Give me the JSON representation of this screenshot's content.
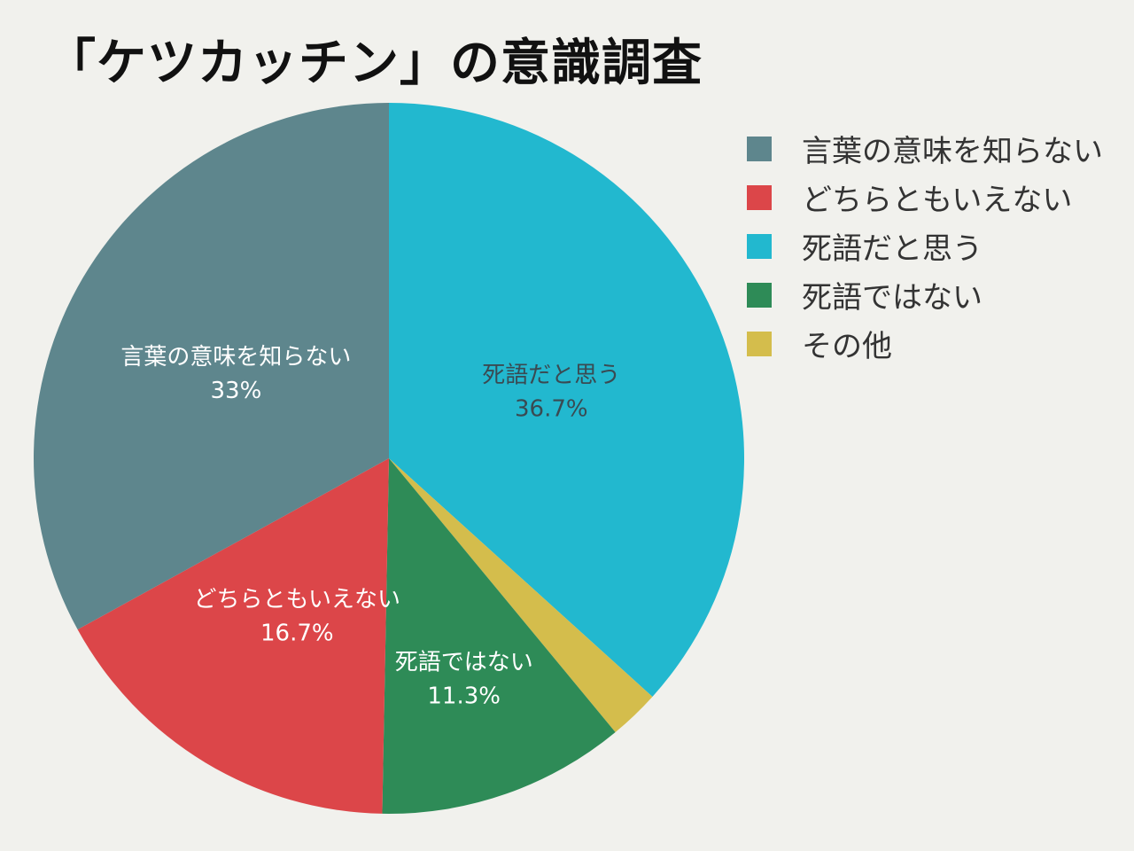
{
  "title": "「ケツカッチン」の意識調査",
  "chart_data": {
    "type": "pie",
    "title": "「ケツカッチン」の意識調査",
    "slices": [
      {
        "label": "死語だと思う",
        "value": 36.7,
        "value_label": "36.7%",
        "color": "#22b8cf"
      },
      {
        "label": "その他",
        "value": 2.3,
        "value_label": "",
        "color": "#d4bd4c"
      },
      {
        "label": "死語ではない",
        "value": 11.3,
        "value_label": "11.3%",
        "color": "#2e8b57"
      },
      {
        "label": "どちらともいえない",
        "value": 16.7,
        "value_label": "16.7%",
        "color": "#dc4649"
      },
      {
        "label": "言葉の意味を知らない",
        "value": 33,
        "value_label": "33%",
        "color": "#5e868d"
      }
    ],
    "legend": {
      "position": "right",
      "items": [
        {
          "label": "言葉の意味を知らない",
          "color": "#5e868d"
        },
        {
          "label": "どちらともいえない",
          "color": "#dc4649"
        },
        {
          "label": "死語だと思う",
          "color": "#22b8cf"
        },
        {
          "label": "死語ではない",
          "color": "#2e8b57"
        },
        {
          "label": "その他",
          "color": "#d4bd4c"
        }
      ]
    },
    "start_angle": "12 o'clock",
    "direction": "clockwise",
    "label_color_light": "#ffffff",
    "label_color_dark": "#3a4a52"
  }
}
